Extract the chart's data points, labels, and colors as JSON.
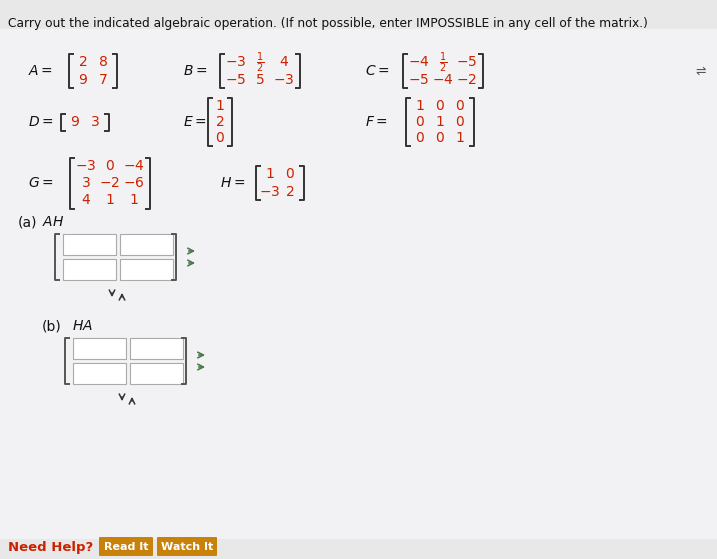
{
  "title": "Carry out the indicated algebraic operation. (If not possible, enter IMPOSSIBLE in any cell of the matrix.)",
  "bg_color": "#e8e8e8",
  "white_area_color": "#f0f0f0",
  "matrix_color": "#cc2200",
  "text_color": "#000000",
  "arrow_color": "#4a7a4a",
  "A_rows": [
    [
      "2",
      "8"
    ],
    [
      "9",
      "7"
    ]
  ],
  "B_rows": [
    [
      "-3",
      "\\frac{1}{2}",
      "4"
    ],
    [
      "-5",
      "5",
      "-3"
    ]
  ],
  "C_rows": [
    [
      "-4",
      "\\frac{1}{2}",
      "-5"
    ],
    [
      "-5",
      "-4",
      "-2"
    ]
  ],
  "D_rows": [
    [
      "9",
      "3"
    ]
  ],
  "E_rows": [
    [
      "1"
    ],
    [
      "2"
    ],
    [
      "0"
    ]
  ],
  "F_rows": [
    [
      "1",
      "0",
      "0"
    ],
    [
      "0",
      "1",
      "0"
    ],
    [
      "0",
      "0",
      "1"
    ]
  ],
  "G_rows": [
    [
      "-3",
      "0",
      "-4"
    ],
    [
      "3",
      "-2",
      "-6"
    ],
    [
      "4",
      "1",
      "1"
    ]
  ],
  "H_rows": [
    [
      "1",
      "0"
    ],
    [
      "-3",
      "2"
    ]
  ],
  "need_help": "Need Help?",
  "read_it": "Read It",
  "watch_it": "Watch It",
  "btn_color": "#c8820a",
  "btn_text_color": "#ffffff"
}
